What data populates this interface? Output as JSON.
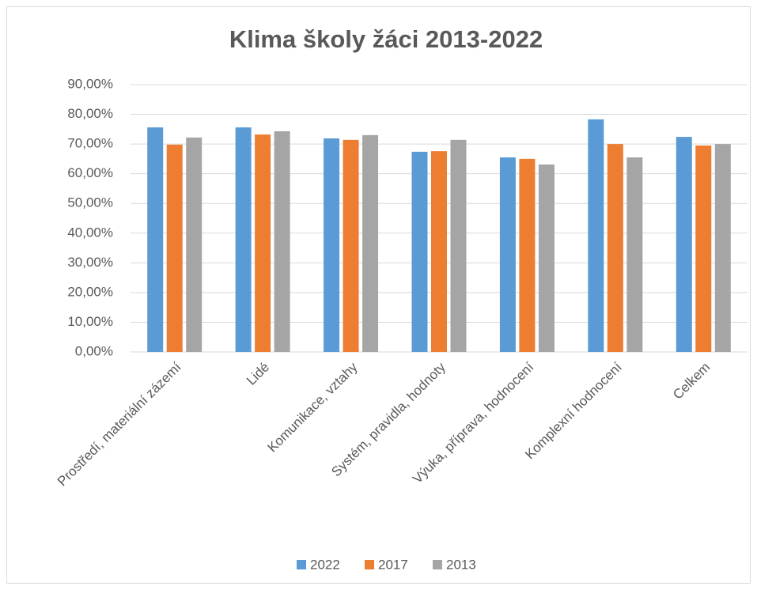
{
  "chart_data": {
    "type": "bar",
    "title": "Klima školy žáci 2013-2022",
    "categories": [
      "Prostředí, materiální zázemí",
      "Lidé",
      "Komunikace, vztahy",
      "Systém, pravidla, hodnoty",
      "Výuka, příprava, hodnocení",
      "Komplexní hodnocení",
      "Celkem"
    ],
    "series": [
      {
        "name": "2022",
        "color": "#5b9bd5",
        "values": [
          75.6,
          75.6,
          71.9,
          67.4,
          65.5,
          78.3,
          72.4
        ]
      },
      {
        "name": "2017",
        "color": "#ed7d31",
        "values": [
          69.8,
          73.2,
          71.4,
          67.6,
          65.0,
          70.0,
          69.5
        ]
      },
      {
        "name": "2013",
        "color": "#a5a5a5",
        "values": [
          72.2,
          74.3,
          73.0,
          71.4,
          63.1,
          65.5,
          70.0
        ]
      }
    ],
    "ylim": [
      0,
      90
    ],
    "yticks": [
      {
        "value": 0,
        "label": "0,00%"
      },
      {
        "value": 10,
        "label": "10,00%"
      },
      {
        "value": 20,
        "label": "20,00%"
      },
      {
        "value": 30,
        "label": "30,00%"
      },
      {
        "value": 40,
        "label": "40,00%"
      },
      {
        "value": 50,
        "label": "50,00%"
      },
      {
        "value": 60,
        "label": "60,00%"
      },
      {
        "value": 70,
        "label": "70,00%"
      },
      {
        "value": 80,
        "label": "80,00%"
      },
      {
        "value": 90,
        "label": "90,00%"
      }
    ],
    "grid": true,
    "legend": "bottom"
  }
}
